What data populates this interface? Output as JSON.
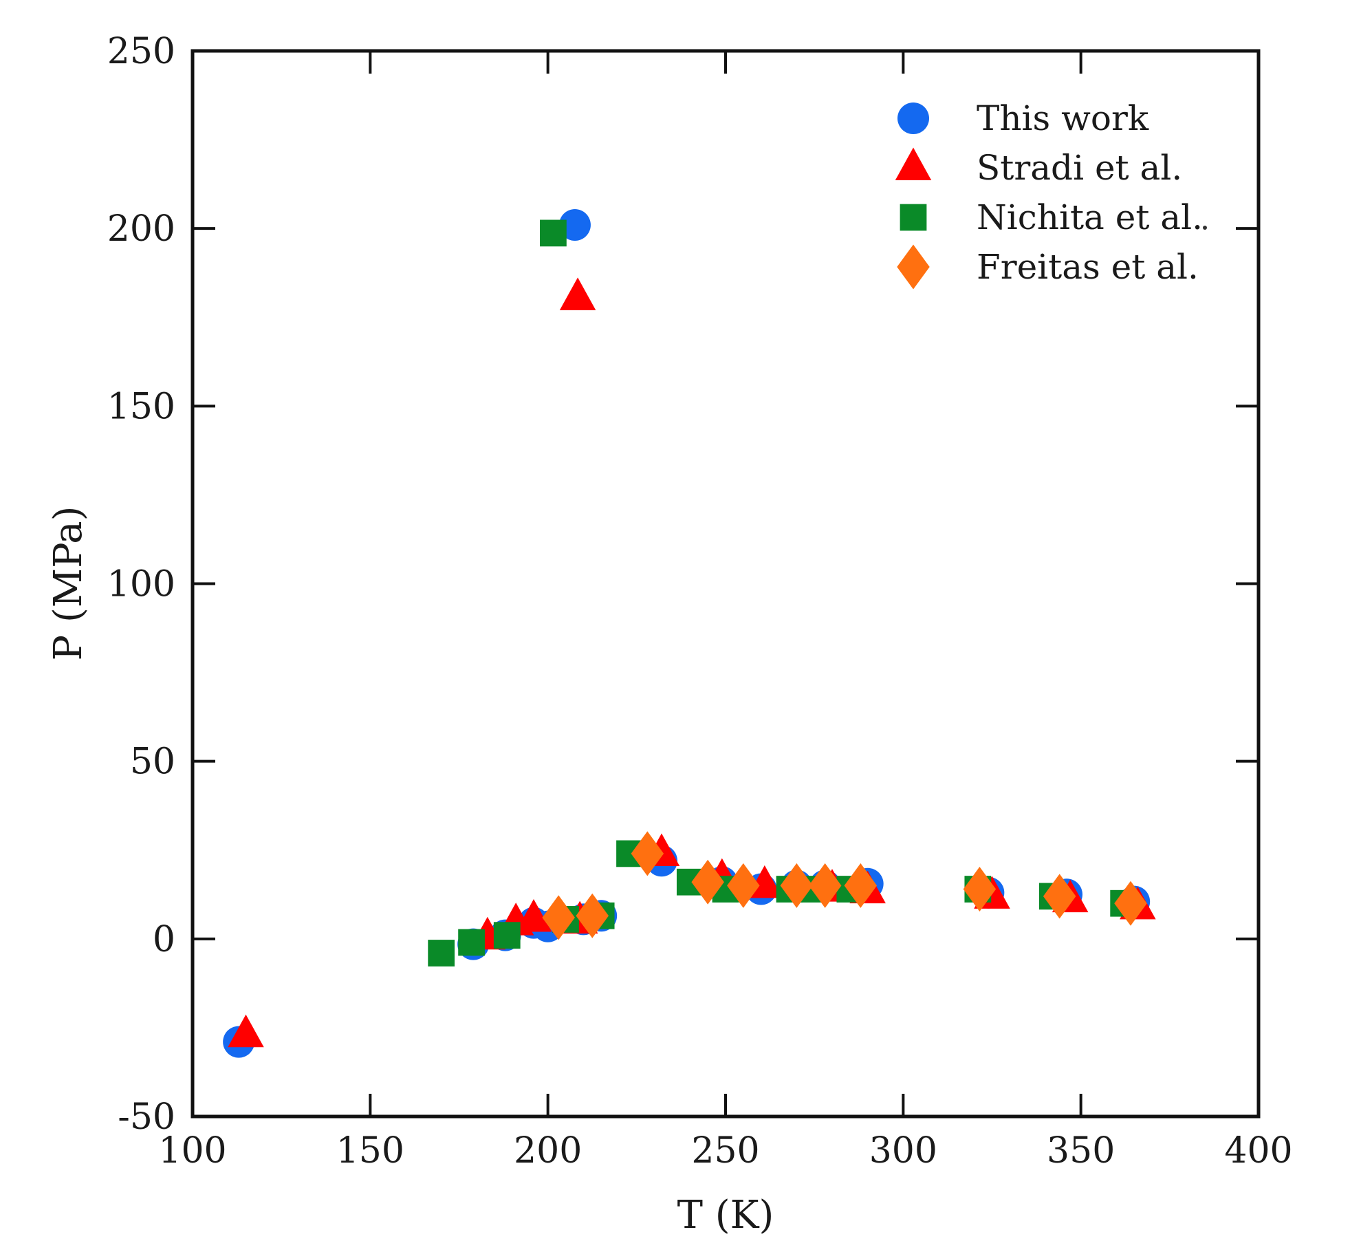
{
  "chart_data": {
    "type": "scatter",
    "title": "",
    "xlabel": "T (K)",
    "ylabel": "P (MPa)",
    "xlim": [
      100,
      400
    ],
    "ylim": [
      -50,
      250
    ],
    "xticks": [
      100,
      150,
      200,
      250,
      300,
      350,
      400
    ],
    "yticks": [
      -50,
      0,
      50,
      100,
      150,
      200,
      250
    ],
    "xtick_labels": [
      "100",
      "150",
      "200",
      "250",
      "300",
      "350",
      "400"
    ],
    "ytick_labels": [
      "-50",
      "0",
      "50",
      "100",
      "150",
      "200",
      "250"
    ],
    "grid": false,
    "legend_position": "top-right",
    "series": [
      {
        "name": "This work",
        "marker": "circle",
        "color": "#1469f0",
        "points": [
          [
            113,
            -29
          ],
          [
            179,
            -1.5
          ],
          [
            188,
            1
          ],
          [
            196,
            4.5
          ],
          [
            200,
            3.5
          ],
          [
            207.6,
            201
          ],
          [
            210,
            5.5
          ],
          [
            215,
            6.5
          ],
          [
            232,
            22
          ],
          [
            249,
            16
          ],
          [
            260,
            14
          ],
          [
            270,
            15
          ],
          [
            278,
            15
          ],
          [
            290,
            15.5
          ],
          [
            324,
            13
          ],
          [
            346,
            12.5
          ],
          [
            365,
            10.5
          ]
        ]
      },
      {
        "name": "Stradi et al.",
        "marker": "triangle",
        "color": "#ff0000",
        "points": [
          [
            115,
            -27
          ],
          [
            183,
            0.5
          ],
          [
            191,
            4.5
          ],
          [
            196,
            5.5
          ],
          [
            208.4,
            180.5
          ],
          [
            209,
            5
          ],
          [
            232,
            24
          ],
          [
            249,
            17
          ],
          [
            261,
            15
          ],
          [
            280,
            14
          ],
          [
            290,
            13.5
          ],
          [
            325,
            12
          ],
          [
            347,
            11
          ],
          [
            366,
            9
          ]
        ]
      },
      {
        "name": "Nichita et al.",
        "marker": "square",
        "color": "#0a8a28",
        "points": [
          [
            170,
            -4
          ],
          [
            178.5,
            -1
          ],
          [
            188.5,
            1
          ],
          [
            201.5,
            198.7
          ],
          [
            205,
            5.5
          ],
          [
            215,
            6.5
          ],
          [
            223,
            24
          ],
          [
            240,
            16
          ],
          [
            250,
            14
          ],
          [
            268,
            14
          ],
          [
            275,
            14
          ],
          [
            285,
            14
          ],
          [
            321,
            14
          ],
          [
            342,
            12
          ],
          [
            362,
            10
          ]
        ]
      },
      {
        "name": "Freitas et al.",
        "marker": "diamond",
        "color": "#ff7010",
        "points": [
          [
            203,
            6
          ],
          [
            212.5,
            6.5
          ],
          [
            228,
            24
          ],
          [
            245,
            16
          ],
          [
            255,
            15
          ],
          [
            270,
            15
          ],
          [
            278,
            15
          ],
          [
            288,
            15
          ],
          [
            321.5,
            14
          ],
          [
            344,
            12
          ],
          [
            364,
            10
          ]
        ]
      }
    ]
  }
}
